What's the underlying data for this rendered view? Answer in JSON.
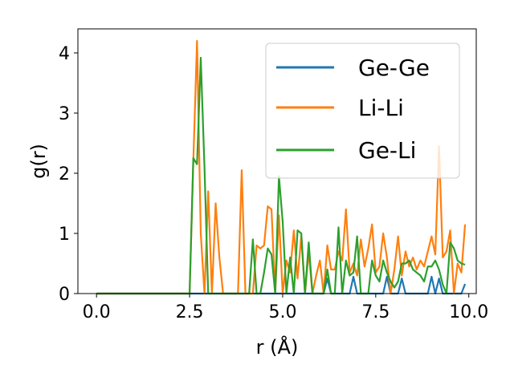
{
  "chart_data": {
    "type": "line",
    "title": "",
    "xlabel": "r (Å)",
    "ylabel": "g(r)",
    "xlim": [
      -0.5,
      10.2
    ],
    "ylim": [
      0,
      4.4
    ],
    "xticks": [
      0.0,
      2.5,
      5.0,
      7.5,
      10.0
    ],
    "xtick_labels": [
      "0.0",
      "2.5",
      "5.0",
      "7.5",
      "10.0"
    ],
    "yticks": [
      0,
      1,
      2,
      3,
      4
    ],
    "ytick_labels": [
      "0",
      "1",
      "2",
      "3",
      "4"
    ],
    "grid": false,
    "legend_position": "top-right",
    "series": [
      {
        "name": "Ge-Ge",
        "color": "#1f77b4",
        "points": [
          [
            0.0,
            0
          ],
          [
            4.9,
            0
          ],
          [
            5.0,
            0
          ],
          [
            5.1,
            0
          ],
          [
            5.2,
            0
          ],
          [
            5.3,
            0
          ],
          [
            5.4,
            0
          ],
          [
            5.5,
            0
          ],
          [
            5.6,
            0
          ],
          [
            5.7,
            0
          ],
          [
            5.8,
            0
          ],
          [
            5.9,
            0
          ],
          [
            6.0,
            0
          ],
          [
            6.1,
            0
          ],
          [
            6.2,
            0.25
          ],
          [
            6.3,
            0
          ],
          [
            6.4,
            0
          ],
          [
            6.5,
            0
          ],
          [
            6.6,
            0
          ],
          [
            6.7,
            0
          ],
          [
            6.8,
            0
          ],
          [
            6.9,
            0.28
          ],
          [
            7.0,
            0
          ],
          [
            7.1,
            0
          ],
          [
            7.2,
            0
          ],
          [
            7.3,
            0
          ],
          [
            7.4,
            0
          ],
          [
            7.5,
            0
          ],
          [
            7.6,
            0
          ],
          [
            7.7,
            0
          ],
          [
            7.8,
            0.28
          ],
          [
            7.9,
            0
          ],
          [
            8.0,
            0
          ],
          [
            8.1,
            0
          ],
          [
            8.2,
            0.25
          ],
          [
            8.3,
            0
          ],
          [
            8.4,
            0
          ],
          [
            8.5,
            0
          ],
          [
            8.6,
            0
          ],
          [
            8.7,
            0
          ],
          [
            8.8,
            0
          ],
          [
            8.9,
            0
          ],
          [
            9.0,
            0.28
          ],
          [
            9.1,
            0
          ],
          [
            9.2,
            0.25
          ],
          [
            9.3,
            0
          ],
          [
            9.4,
            0
          ],
          [
            9.5,
            0
          ],
          [
            9.6,
            0
          ],
          [
            9.7,
            0
          ],
          [
            9.8,
            0
          ],
          [
            9.9,
            0.16
          ]
        ]
      },
      {
        "name": "Li-Li",
        "color": "#ff7f0e",
        "points": [
          [
            0.0,
            0
          ],
          [
            2.5,
            0
          ],
          [
            2.6,
            2.2
          ],
          [
            2.7,
            4.2
          ],
          [
            2.8,
            1.0
          ],
          [
            2.9,
            0
          ],
          [
            3.0,
            1.7
          ],
          [
            3.1,
            0
          ],
          [
            3.2,
            1.5
          ],
          [
            3.3,
            0.6
          ],
          [
            3.4,
            0
          ],
          [
            3.5,
            0
          ],
          [
            3.6,
            0
          ],
          [
            3.7,
            0
          ],
          [
            3.8,
            0
          ],
          [
            3.9,
            2.05
          ],
          [
            4.0,
            0
          ],
          [
            4.1,
            0
          ],
          [
            4.2,
            0
          ],
          [
            4.3,
            0.8
          ],
          [
            4.4,
            0.75
          ],
          [
            4.5,
            0.8
          ],
          [
            4.6,
            1.45
          ],
          [
            4.7,
            1.4
          ],
          [
            4.8,
            0
          ],
          [
            4.9,
            1.3
          ],
          [
            5.0,
            0
          ],
          [
            5.1,
            0.55
          ],
          [
            5.2,
            0.35
          ],
          [
            5.3,
            1.05
          ],
          [
            5.4,
            0.25
          ],
          [
            5.5,
            0.95
          ],
          [
            5.6,
            0
          ],
          [
            5.7,
            0.7
          ],
          [
            5.8,
            0
          ],
          [
            5.9,
            0.3
          ],
          [
            6.0,
            0.55
          ],
          [
            6.1,
            0
          ],
          [
            6.2,
            0.8
          ],
          [
            6.3,
            0.4
          ],
          [
            6.4,
            0.4
          ],
          [
            6.5,
            0.7
          ],
          [
            6.6,
            0.55
          ],
          [
            6.7,
            1.4
          ],
          [
            6.8,
            0.35
          ],
          [
            6.9,
            0.5
          ],
          [
            7.0,
            0.3
          ],
          [
            7.1,
            0.9
          ],
          [
            7.2,
            0.45
          ],
          [
            7.3,
            0.75
          ],
          [
            7.4,
            1.15
          ],
          [
            7.5,
            0.35
          ],
          [
            7.6,
            0.45
          ],
          [
            7.7,
            1.0
          ],
          [
            7.8,
            0.6
          ],
          [
            7.9,
            0
          ],
          [
            8.0,
            0.4
          ],
          [
            8.1,
            0.95
          ],
          [
            8.2,
            0.3
          ],
          [
            8.3,
            0.7
          ],
          [
            8.4,
            0.45
          ],
          [
            8.5,
            0.6
          ],
          [
            8.6,
            0.4
          ],
          [
            8.7,
            0.55
          ],
          [
            8.8,
            0.45
          ],
          [
            8.9,
            0.7
          ],
          [
            9.0,
            0.95
          ],
          [
            9.1,
            0.65
          ],
          [
            9.2,
            2.45
          ],
          [
            9.3,
            0.6
          ],
          [
            9.4,
            0.7
          ],
          [
            9.5,
            1.05
          ],
          [
            9.6,
            0
          ],
          [
            9.7,
            0.5
          ],
          [
            9.8,
            0.35
          ],
          [
            9.9,
            1.15
          ]
        ]
      },
      {
        "name": "Ge-Li",
        "color": "#2ca02c",
        "points": [
          [
            0.0,
            0
          ],
          [
            2.5,
            0
          ],
          [
            2.6,
            2.25
          ],
          [
            2.7,
            2.15
          ],
          [
            2.8,
            3.92
          ],
          [
            2.9,
            2.1
          ],
          [
            3.0,
            0
          ],
          [
            4.0,
            0
          ],
          [
            4.1,
            0
          ],
          [
            4.2,
            0.9
          ],
          [
            4.3,
            0
          ],
          [
            4.4,
            0
          ],
          [
            4.5,
            0.35
          ],
          [
            4.6,
            0.75
          ],
          [
            4.7,
            0.65
          ],
          [
            4.8,
            0
          ],
          [
            4.9,
            1.95
          ],
          [
            5.0,
            1.2
          ],
          [
            5.1,
            0
          ],
          [
            5.2,
            0.6
          ],
          [
            5.3,
            0
          ],
          [
            5.4,
            1.05
          ],
          [
            5.5,
            1.0
          ],
          [
            5.6,
            0
          ],
          [
            5.7,
            0.85
          ],
          [
            5.8,
            0
          ],
          [
            5.9,
            0
          ],
          [
            6.0,
            0
          ],
          [
            6.1,
            0
          ],
          [
            6.2,
            0.4
          ],
          [
            6.3,
            0
          ],
          [
            6.4,
            0
          ],
          [
            6.5,
            1.1
          ],
          [
            6.6,
            0
          ],
          [
            6.7,
            0.55
          ],
          [
            6.8,
            0.3
          ],
          [
            6.9,
            0.35
          ],
          [
            7.0,
            0.95
          ],
          [
            7.1,
            0
          ],
          [
            7.2,
            0
          ],
          [
            7.3,
            0
          ],
          [
            7.4,
            0.55
          ],
          [
            7.5,
            0.3
          ],
          [
            7.6,
            0.2
          ],
          [
            7.7,
            0.55
          ],
          [
            7.8,
            0.35
          ],
          [
            7.9,
            0.2
          ],
          [
            8.0,
            0.1
          ],
          [
            8.1,
            0.2
          ],
          [
            8.2,
            0.5
          ],
          [
            8.3,
            0.5
          ],
          [
            8.4,
            0.55
          ],
          [
            8.5,
            0.4
          ],
          [
            8.6,
            0.35
          ],
          [
            8.7,
            0.3
          ],
          [
            8.8,
            0.2
          ],
          [
            8.9,
            0.45
          ],
          [
            9.0,
            0.45
          ],
          [
            9.1,
            0.55
          ],
          [
            9.2,
            0.4
          ],
          [
            9.3,
            0.15
          ],
          [
            9.4,
            0
          ],
          [
            9.5,
            0.85
          ],
          [
            9.6,
            0.75
          ],
          [
            9.7,
            0.55
          ],
          [
            9.8,
            0.5
          ],
          [
            9.9,
            0.48
          ]
        ]
      }
    ]
  }
}
